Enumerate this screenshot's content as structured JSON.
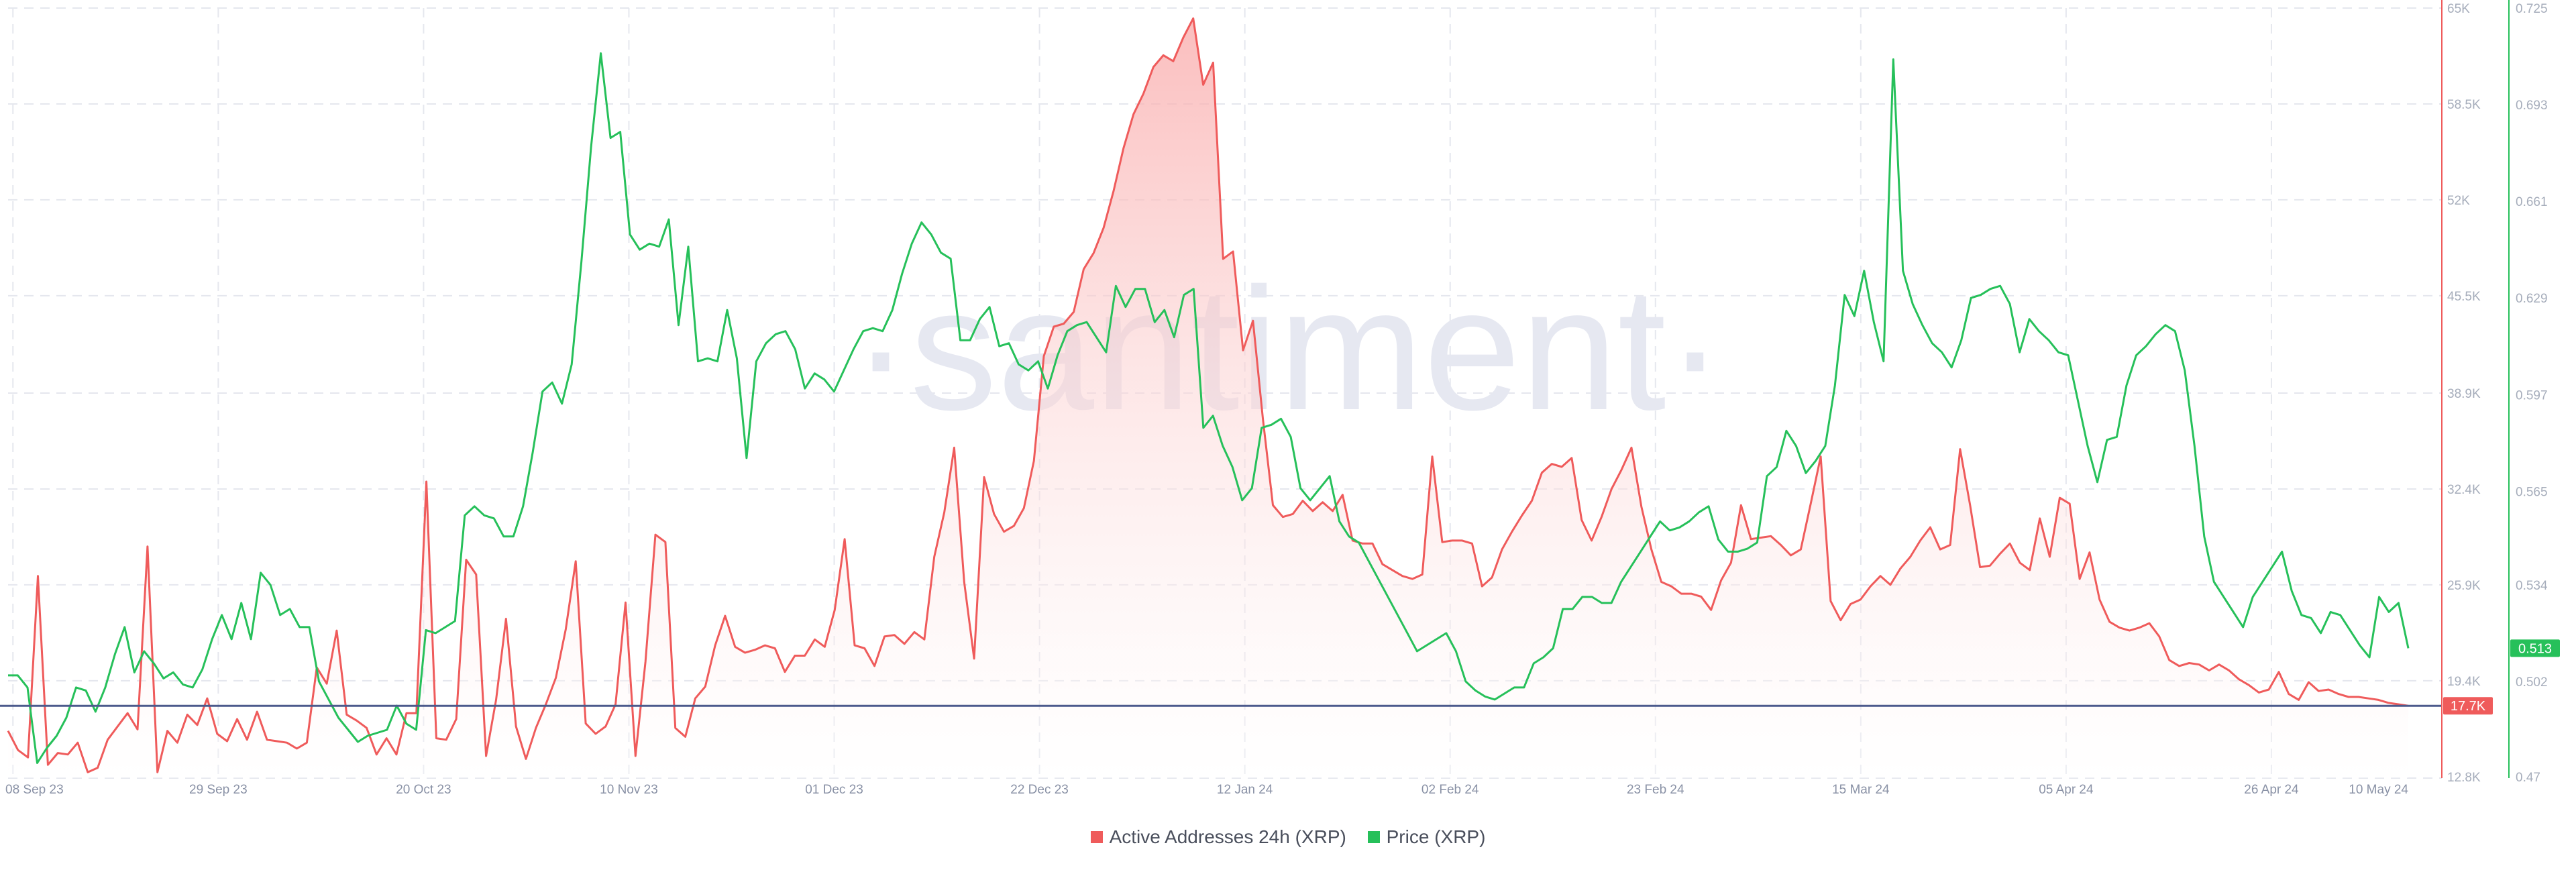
{
  "watermark": "·santiment·",
  "chart_data": {
    "type": "line",
    "x_ticks": [
      "08 Sep 23",
      "29 Sep 23",
      "20 Oct 23",
      "10 Nov 23",
      "01 Dec 23",
      "22 Dec 23",
      "12 Jan 24",
      "02 Feb 24",
      "23 Feb 24",
      "15 Mar 24",
      "05 Apr 24",
      "26 Apr 24",
      "10 May 24"
    ],
    "x_tick_pos": [
      0.5,
      21.5,
      42.5,
      63.5,
      84.5,
      105.5,
      126.5,
      147.5,
      168.5,
      189.5,
      210.5,
      231.5,
      245.5
    ],
    "x_range": [
      0,
      245.5
    ],
    "series": [
      {
        "name": "Active Addresses 24h (XRP)",
        "color": "#ef5b5b",
        "axis": "left",
        "ylim": [
          12800,
          65000
        ],
        "y_ticks": [
          "65K",
          "58.5K",
          "52K",
          "45.5K",
          "38.9K",
          "32.4K",
          "25.9K",
          "19.4K",
          "12.8K"
        ],
        "y_tick_values": [
          65000,
          58500,
          52000,
          45500,
          38900,
          32400,
          25900,
          19400,
          12800
        ],
        "current_label": "17.7K",
        "current_value": 17700,
        "values": [
          16000,
          14700,
          14200,
          26500,
          13700,
          14500,
          14400,
          15200,
          13200,
          13500,
          15400,
          16300,
          17200,
          16100,
          28500,
          13200,
          16000,
          15200,
          17100,
          16400,
          18200,
          15800,
          15300,
          16800,
          15400,
          17300,
          15400,
          15300,
          15200,
          14800,
          15200,
          20300,
          19200,
          22800,
          17100,
          16700,
          16200,
          14400,
          15500,
          14400,
          17200,
          17200,
          32900,
          15500,
          15400,
          16800,
          27600,
          26600,
          14300,
          18100,
          23600,
          16300,
          14100,
          16200,
          17800,
          19600,
          22900,
          27500,
          16500,
          15800,
          16300,
          17800,
          24700,
          14300,
          20700,
          29300,
          28800,
          16200,
          15600,
          18200,
          19000,
          21800,
          23800,
          21700,
          21300,
          21500,
          21800,
          21600,
          20000,
          21100,
          21100,
          22200,
          21700,
          24200,
          29000,
          21800,
          21600,
          20400,
          22400,
          22500,
          21900,
          22700,
          22200,
          27800,
          30800,
          35200,
          26100,
          20900,
          33200,
          30700,
          29500,
          29900,
          31100,
          34300,
          41400,
          43400,
          43600,
          44400,
          47300,
          48400,
          50100,
          52600,
          55500,
          57800,
          59200,
          61000,
          61800,
          61400,
          63000,
          64300,
          59800,
          61300,
          48000,
          48500,
          41800,
          43800,
          37100,
          31300,
          30500,
          30700,
          31600,
          30900,
          31500,
          30900,
          32000,
          28900,
          28700,
          28700,
          27300,
          26900,
          26500,
          26300,
          26600,
          34600,
          28800,
          28900,
          28900,
          28700,
          25800,
          26400,
          28300,
          29500,
          30600,
          31600,
          33500,
          34100,
          33900,
          34500,
          30300,
          28900,
          30500,
          32400,
          33700,
          35200,
          31200,
          28300,
          26100,
          25800,
          25300,
          25300,
          25100,
          24200,
          26200,
          27400,
          31300,
          29000,
          29100,
          29200,
          28600,
          27900,
          28300,
          31400,
          34600,
          24800,
          23500,
          24600,
          24900,
          25800,
          26500,
          25900,
          27000,
          27800,
          28900,
          29800,
          28300,
          28600,
          35100,
          31300,
          27100,
          27200,
          28000,
          28700,
          27400,
          26900,
          30400,
          27800,
          31800,
          31400,
          26300,
          28100,
          24900,
          23400,
          23000,
          22800,
          23000,
          23300,
          22400,
          20800,
          20400,
          20600,
          20500,
          20100,
          20500,
          20100,
          19500,
          19100,
          18600,
          18800,
          20000,
          18500,
          18100,
          19300,
          18700,
          18800,
          18500,
          18300,
          18300,
          18200,
          18100,
          17900,
          17800,
          17700
        ]
      },
      {
        "name": "Price (XRP)",
        "color": "#26c05a",
        "axis": "right",
        "ylim": [
          0.47,
          0.725
        ],
        "y_ticks": [
          "0.725",
          "0.693",
          "0.661",
          "0.629",
          "0.597",
          "0.565",
          "0.534",
          "0.502",
          "0.47"
        ],
        "y_tick_values": [
          0.725,
          0.693,
          0.661,
          0.629,
          0.597,
          0.565,
          0.534,
          0.502,
          0.47
        ],
        "current_label": "0.513",
        "current_value": 0.513,
        "values": [
          0.504,
          0.504,
          0.5,
          0.475,
          0.48,
          0.484,
          0.49,
          0.5,
          0.499,
          0.492,
          0.5,
          0.511,
          0.52,
          0.505,
          0.512,
          0.508,
          0.503,
          0.505,
          0.501,
          0.5,
          0.506,
          0.516,
          0.524,
          0.516,
          0.528,
          0.516,
          0.538,
          0.534,
          0.524,
          0.526,
          0.52,
          0.52,
          0.502,
          0.496,
          0.49,
          0.486,
          0.482,
          0.484,
          0.485,
          0.486,
          0.494,
          0.488,
          0.486,
          0.519,
          0.518,
          0.52,
          0.522,
          0.557,
          0.56,
          0.557,
          0.556,
          0.55,
          0.55,
          0.56,
          0.578,
          0.598,
          0.601,
          0.594,
          0.607,
          0.641,
          0.679,
          0.71,
          0.682,
          0.684,
          0.65,
          0.645,
          0.647,
          0.646,
          0.655,
          0.62,
          0.646,
          0.608,
          0.609,
          0.608,
          0.625,
          0.609,
          0.576,
          0.608,
          0.614,
          0.617,
          0.618,
          0.612,
          0.599,
          0.604,
          0.602,
          0.598,
          0.605,
          0.612,
          0.618,
          0.619,
          0.618,
          0.625,
          0.637,
          0.647,
          0.654,
          0.65,
          0.644,
          0.642,
          0.615,
          0.615,
          0.622,
          0.626,
          0.613,
          0.614,
          0.607,
          0.605,
          0.608,
          0.599,
          0.61,
          0.618,
          0.62,
          0.621,
          0.616,
          0.611,
          0.633,
          0.626,
          0.632,
          0.632,
          0.621,
          0.625,
          0.616,
          0.63,
          0.632,
          0.586,
          0.59,
          0.58,
          0.573,
          0.562,
          0.566,
          0.586,
          0.587,
          0.589,
          0.583,
          0.566,
          0.562,
          0.566,
          0.57,
          0.555,
          0.55,
          0.548,
          0.542,
          0.536,
          0.53,
          0.524,
          0.518,
          0.512,
          0.514,
          0.516,
          0.518,
          0.512,
          0.502,
          0.499,
          0.497,
          0.496,
          0.498,
          0.5,
          0.5,
          0.508,
          0.51,
          0.513,
          0.526,
          0.526,
          0.53,
          0.53,
          0.528,
          0.528,
          0.535,
          0.54,
          0.545,
          0.55,
          0.555,
          0.552,
          0.553,
          0.555,
          0.558,
          0.56,
          0.549,
          0.545,
          0.545,
          0.546,
          0.548,
          0.57,
          0.573,
          0.585,
          0.58,
          0.571,
          0.575,
          0.58,
          0.6,
          0.63,
          0.623,
          0.638,
          0.621,
          0.608,
          0.708,
          0.638,
          0.627,
          0.62,
          0.614,
          0.611,
          0.606,
          0.615,
          0.629,
          0.63,
          0.632,
          0.633,
          0.627,
          0.611,
          0.622,
          0.618,
          0.615,
          0.611,
          0.61,
          0.595,
          0.58,
          0.568,
          0.582,
          0.583,
          0.6,
          0.61,
          0.613,
          0.617,
          0.62,
          0.618,
          0.605,
          0.58,
          0.55,
          0.535,
          0.53,
          0.525,
          0.52,
          0.53,
          0.535,
          0.54,
          0.545,
          0.532,
          0.524,
          0.523,
          0.518,
          0.525,
          0.524,
          0.519,
          0.514,
          0.51,
          0.53,
          0.525,
          0.528,
          0.513
        ]
      }
    ],
    "reference_line_value": 17700,
    "grid": true,
    "legend_position": "bottom-center"
  }
}
